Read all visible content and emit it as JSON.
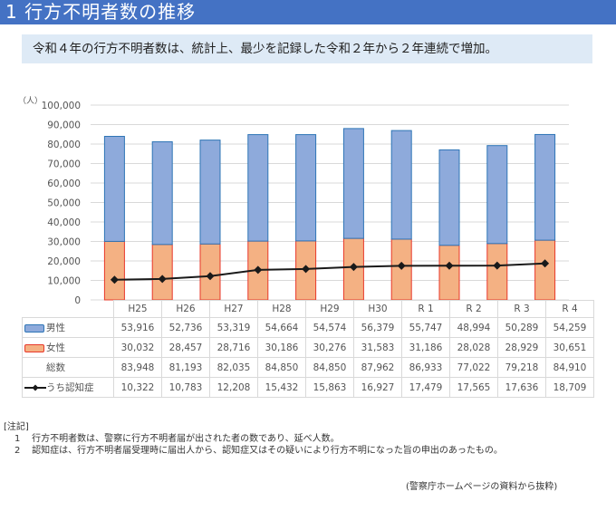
{
  "header": {
    "title": "1 行方不明者数の推移"
  },
  "summary": {
    "text": "令和４年の行方不明者数は、統計上、最少を記録した令和２年から２年連続で増加。"
  },
  "colors": {
    "header_bg": "#4472C4",
    "summary_bg": "#DEEAF6",
    "male": "#8EAADB",
    "male_border": "#2E75B6",
    "female": "#F4B183",
    "female_border": "#E8382A",
    "line": "#1a1a1a"
  },
  "chart_data": {
    "type": "bar",
    "stacked": true,
    "unit_label": "（人）",
    "categories": [
      "H25",
      "H26",
      "H27",
      "H28",
      "H29",
      "H30",
      "R 1",
      "R 2",
      "R 3",
      "R 4"
    ],
    "ylim": [
      0,
      100000
    ],
    "yticks": [
      "0",
      "10,000",
      "20,000",
      "30,000",
      "40,000",
      "50,000",
      "60,000",
      "70,000",
      "80,000",
      "90,000",
      "100,000"
    ],
    "grid": true,
    "series": [
      {
        "name": "男性",
        "type": "bar",
        "values": [
          53916,
          52736,
          53319,
          54664,
          54574,
          56379,
          55747,
          48994,
          50289,
          54259
        ],
        "labels": [
          "53,916",
          "52,736",
          "53,319",
          "54,664",
          "54,574",
          "56,379",
          "55,747",
          "48,994",
          "50,289",
          "54,259"
        ]
      },
      {
        "name": "女性",
        "type": "bar",
        "values": [
          30032,
          28457,
          28716,
          30186,
          30276,
          31583,
          31186,
          28028,
          28929,
          30651
        ],
        "labels": [
          "30,032",
          "28,457",
          "28,716",
          "30,186",
          "30,276",
          "31,583",
          "31,186",
          "28,028",
          "28,929",
          "30,651"
        ]
      },
      {
        "name": "総数",
        "type": "total",
        "values": [
          83948,
          81193,
          82035,
          84850,
          84850,
          87962,
          86933,
          77022,
          79218,
          84910
        ],
        "labels": [
          "83,948",
          "81,193",
          "82,035",
          "84,850",
          "84,850",
          "87,962",
          "86,933",
          "77,022",
          "79,218",
          "84,910"
        ]
      },
      {
        "name": "うち認知症",
        "type": "line",
        "values": [
          10322,
          10783,
          12208,
          15432,
          15863,
          16927,
          17479,
          17565,
          17636,
          18709
        ],
        "labels": [
          "10,322",
          "10,783",
          "12,208",
          "15,432",
          "15,863",
          "16,927",
          "17,479",
          "17,565",
          "17,636",
          "18,709"
        ]
      }
    ],
    "legend": "table-below"
  },
  "notes": {
    "heading": "[注記]",
    "items": [
      {
        "num": "1",
        "text": "行方不明者数は、警察に行方不明者届が出された者の数であり、延べ人数。"
      },
      {
        "num": "2",
        "text": "認知症は、行方不明者届受理時に届出人から、認知症又はその疑いにより行方不明になった旨の申出のあったもの。"
      }
    ]
  },
  "source": "(警察庁ホームページの資料から抜粋)"
}
